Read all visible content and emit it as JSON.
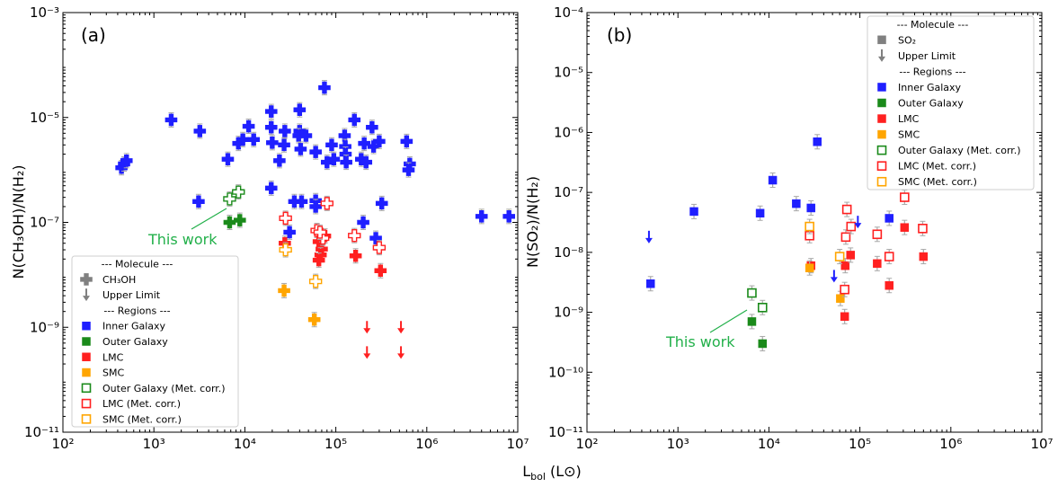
{
  "figure": {
    "shared_xlabel": "L",
    "shared_xlabel_sub": "bol",
    "shared_xlabel_unit": " (L⊙)"
  },
  "chart_data": [
    {
      "id": "a",
      "type": "scatter",
      "panel_label": "(a)",
      "ylabel": "N(CH₃OH)/N(H₂)",
      "xlabel": "Lbol (L⊙)",
      "xscale": "log",
      "yscale": "log",
      "xlim": [
        100.0,
        10000000.0
      ],
      "ylim": [
        1e-11,
        0.001
      ],
      "xticks": [
        "10²",
        "10³",
        "10⁴",
        "10⁵",
        "10⁶",
        "10⁷"
      ],
      "yticks": [
        "10⁻¹¹",
        "10⁻⁹",
        "10⁻⁷",
        "10⁻⁵",
        "10⁻³"
      ],
      "annotation": "This work",
      "legend": {
        "position": "lower-left",
        "entries": [
          {
            "kind": "header",
            "label": "--- Molecule ---"
          },
          {
            "kind": "plus",
            "color": "#808080",
            "label": "CH₃OH"
          },
          {
            "kind": "arrow",
            "color": "#808080",
            "label": "Upper Limit"
          },
          {
            "kind": "header",
            "label": "--- Regions ---"
          },
          {
            "kind": "square",
            "color": "#1f1fff",
            "label": "Inner Galaxy"
          },
          {
            "kind": "square",
            "color": "#1a8a1a",
            "label": "Outer Galaxy"
          },
          {
            "kind": "square",
            "color": "#ff2020",
            "label": "LMC"
          },
          {
            "kind": "square",
            "color": "#ffa500",
            "label": "SMC"
          },
          {
            "kind": "open",
            "color": "#1a8a1a",
            "label": "Outer Galaxy (Met. corr.)"
          },
          {
            "kind": "open",
            "color": "#ff2020",
            "label": "LMC (Met. corr.)"
          },
          {
            "kind": "open",
            "color": "#ffa500",
            "label": "SMC (Met. corr.)"
          }
        ]
      },
      "series": [
        {
          "name": "Inner Galaxy",
          "style": "filled",
          "color": "#1f1fff",
          "points": [
            [
              440,
              1.1e-06
            ],
            [
              470,
              1.3e-06
            ],
            [
              500,
              1.5e-06
            ],
            [
              1550,
              9e-06
            ],
            [
              3200,
              5.5e-06
            ],
            [
              3100,
              2.5e-07
            ],
            [
              6500,
              1.6e-06
            ],
            [
              8500,
              3.2e-06
            ],
            [
              9500,
              3.8e-06
            ],
            [
              11000,
              6.8e-06
            ],
            [
              12500,
              3.8e-06
            ],
            [
              19500,
              1.3e-05
            ],
            [
              19500,
              6.5e-06
            ],
            [
              19500,
              4.5e-07
            ],
            [
              20000,
              3.3e-06
            ],
            [
              24000,
              1.5e-06
            ],
            [
              27000,
              3e-06
            ],
            [
              27500,
              5.5e-06
            ],
            [
              31000,
              6.5e-08
            ],
            [
              35000,
              2.5e-07
            ],
            [
              40000,
              1.4e-05
            ],
            [
              40000,
              5.5e-06
            ],
            [
              39000,
              4.5e-06
            ],
            [
              41000,
              2.5e-06
            ],
            [
              42000,
              2.5e-07
            ],
            [
              47000,
              4.5e-06
            ],
            [
              60000,
              2.6e-07
            ],
            [
              60000,
              2e-07
            ],
            [
              60000,
              2.2e-06
            ],
            [
              75000,
              3.7e-05
            ],
            [
              80000,
              1.4e-06
            ],
            [
              90000,
              3e-06
            ],
            [
              95000,
              1.6e-06
            ],
            [
              125000,
              4.5e-06
            ],
            [
              127000,
              2.8e-06
            ],
            [
              128000,
              2e-06
            ],
            [
              130000,
              1.4e-06
            ],
            [
              160000,
              9e-06
            ],
            [
              190000,
              1.6e-06
            ],
            [
              200000,
              1e-07
            ],
            [
              205000,
              3.2e-06
            ],
            [
              215000,
              1.4e-06
            ],
            [
              250000,
              6.5e-06
            ],
            [
              260000,
              2.8e-06
            ],
            [
              275000,
              5e-08
            ],
            [
              300000,
              3.5e-06
            ],
            [
              320000,
              2.3e-07
            ],
            [
              600000,
              3.5e-06
            ],
            [
              650000,
              1.3e-06
            ],
            [
              630000,
              1e-06
            ],
            [
              4000000,
              1.3e-07
            ],
            [
              8000000,
              1.3e-07
            ]
          ]
        },
        {
          "name": "Outer Galaxy",
          "style": "filled",
          "color": "#1a8a1a",
          "points": [
            [
              6800,
              1e-07
            ],
            [
              8800,
              1.1e-07
            ]
          ]
        },
        {
          "name": "LMC",
          "style": "filled",
          "color": "#ff2020",
          "points": [
            [
              27500,
              4e-08
            ],
            [
              65000,
              4.3e-08
            ],
            [
              70000,
              3.1e-08
            ],
            [
              76000,
              5.5e-08
            ],
            [
              68000,
              2.4e-08
            ],
            [
              65000,
              1.9e-08
            ],
            [
              165000,
              2.3e-08
            ],
            [
              310000,
              1.2e-08
            ]
          ]
        },
        {
          "name": "SMC",
          "style": "filled",
          "color": "#ffa500",
          "points": [
            [
              27000,
              5e-09
            ],
            [
              58000,
              1.4e-09
            ]
          ]
        },
        {
          "name": "Outer Galaxy (Met. corr.)",
          "style": "open-plus",
          "color": "#1a8a1a",
          "points": [
            [
              6800,
              2.8e-07
            ],
            [
              8500,
              3.8e-07
            ]
          ]
        },
        {
          "name": "LMC (Met. corr.)",
          "style": "open-plus",
          "color": "#ff2020",
          "points": [
            [
              28000,
              1.2e-07
            ],
            [
              62000,
              7e-08
            ],
            [
              72000,
              5e-08
            ],
            [
              67000,
              6.5e-08
            ],
            [
              80000,
              2.3e-07
            ],
            [
              160000,
              5.6e-08
            ],
            [
              300000,
              3.3e-08
            ]
          ]
        },
        {
          "name": "SMC (Met. corr.)",
          "style": "open-plus",
          "color": "#ffa500",
          "points": [
            [
              28000,
              3e-08
            ],
            [
              60000,
              7.5e-09
            ]
          ]
        },
        {
          "name": "Upper Limit",
          "style": "arrow",
          "color": "#ff2020",
          "points": [
            [
              220000,
              1e-09
            ],
            [
              520000,
              1e-09
            ],
            [
              220000,
              3.3e-10
            ],
            [
              520000,
              3.3e-10
            ]
          ]
        }
      ]
    },
    {
      "id": "b",
      "type": "scatter",
      "panel_label": "(b)",
      "ylabel": "N(SO₂)/N(H₂)",
      "xlabel": "Lbol (L⊙)",
      "xscale": "log",
      "yscale": "log",
      "xlim": [
        100.0,
        10000000.0
      ],
      "ylim": [
        1e-11,
        0.0001
      ],
      "xticks": [
        "10²",
        "10³",
        "10⁴",
        "10⁵",
        "10⁶",
        "10⁷"
      ],
      "yticks": [
        "10⁻¹¹",
        "10⁻¹⁰",
        "10⁻⁹",
        "10⁻⁸",
        "10⁻⁷",
        "10⁻⁶",
        "10⁻⁵",
        "10⁻⁴"
      ],
      "annotation": "This work",
      "legend": {
        "position": "top-right",
        "entries": [
          {
            "kind": "header",
            "label": "--- Molecule ---"
          },
          {
            "kind": "square",
            "color": "#808080",
            "label": "SO₂"
          },
          {
            "kind": "arrow",
            "color": "#808080",
            "label": "Upper Limit"
          },
          {
            "kind": "header",
            "label": "--- Regions ---"
          },
          {
            "kind": "square",
            "color": "#1f1fff",
            "label": "Inner Galaxy"
          },
          {
            "kind": "square",
            "color": "#1a8a1a",
            "label": "Outer Galaxy"
          },
          {
            "kind": "square",
            "color": "#ff2020",
            "label": "LMC"
          },
          {
            "kind": "square",
            "color": "#ffa500",
            "label": "SMC"
          },
          {
            "kind": "open",
            "color": "#1a8a1a",
            "label": "Outer Galaxy (Met. corr.)"
          },
          {
            "kind": "open",
            "color": "#ff2020",
            "label": "LMC (Met. corr.)"
          },
          {
            "kind": "open",
            "color": "#ffa500",
            "label": "SMC (Met. corr.)"
          }
        ]
      },
      "series": [
        {
          "name": "Inner Galaxy",
          "style": "filled",
          "color": "#1f1fff",
          "points": [
            [
              500,
              3e-09
            ],
            [
              1500,
              4.8e-08
            ],
            [
              8000,
              4.5e-08
            ],
            [
              11000,
              1.6e-07
            ],
            [
              20000,
              6.5e-08
            ],
            [
              29000,
              5.5e-08
            ],
            [
              34000,
              7e-07
            ],
            [
              210000,
              3.7e-08
            ]
          ]
        },
        {
          "name": "Outer Galaxy",
          "style": "filled",
          "color": "#1a8a1a",
          "points": [
            [
              6500,
              7e-10
            ],
            [
              8500,
              3e-10
            ]
          ]
        },
        {
          "name": "LMC",
          "style": "filled",
          "color": "#ff2020",
          "points": [
            [
              29000,
              6e-09
            ],
            [
              68000,
              8.5e-10
            ],
            [
              69000,
              6e-09
            ],
            [
              79000,
              9e-09
            ],
            [
              155000,
              6.5e-09
            ],
            [
              210000,
              2.8e-09
            ],
            [
              310000,
              2.6e-08
            ],
            [
              500000,
              8.5e-09
            ]
          ]
        },
        {
          "name": "SMC",
          "style": "filled",
          "color": "#ffa500",
          "points": [
            [
              28000,
              5.5e-09
            ],
            [
              61000,
              1.7e-09
            ]
          ]
        },
        {
          "name": "Outer Galaxy (Met. corr.)",
          "style": "open",
          "color": "#1a8a1a",
          "points": [
            [
              6500,
              2.1e-09
            ],
            [
              8500,
              1.2e-09
            ]
          ]
        },
        {
          "name": "LMC (Met. corr.)",
          "style": "open",
          "color": "#ff2020",
          "points": [
            [
              28000,
              1.9e-08
            ],
            [
              68000,
              2.4e-09
            ],
            [
              70000,
              1.8e-08
            ],
            [
              72000,
              5.2e-08
            ],
            [
              80000,
              2.7e-08
            ],
            [
              155000,
              2e-08
            ],
            [
              210000,
              8.5e-09
            ],
            [
              310000,
              8.3e-08
            ],
            [
              490000,
              2.5e-08
            ]
          ]
        },
        {
          "name": "SMC (Met. corr.)",
          "style": "open",
          "color": "#ffa500",
          "points": [
            [
              28000,
              2.7e-08
            ],
            [
              60000,
              8.5e-09
            ]
          ]
        },
        {
          "name": "Upper Limit",
          "style": "arrow",
          "color": "#1f1fff",
          "points": [
            [
              480,
              1.8e-08
            ],
            [
              52000,
              4e-09
            ],
            [
              95000,
              3.2e-08
            ]
          ]
        }
      ]
    }
  ]
}
